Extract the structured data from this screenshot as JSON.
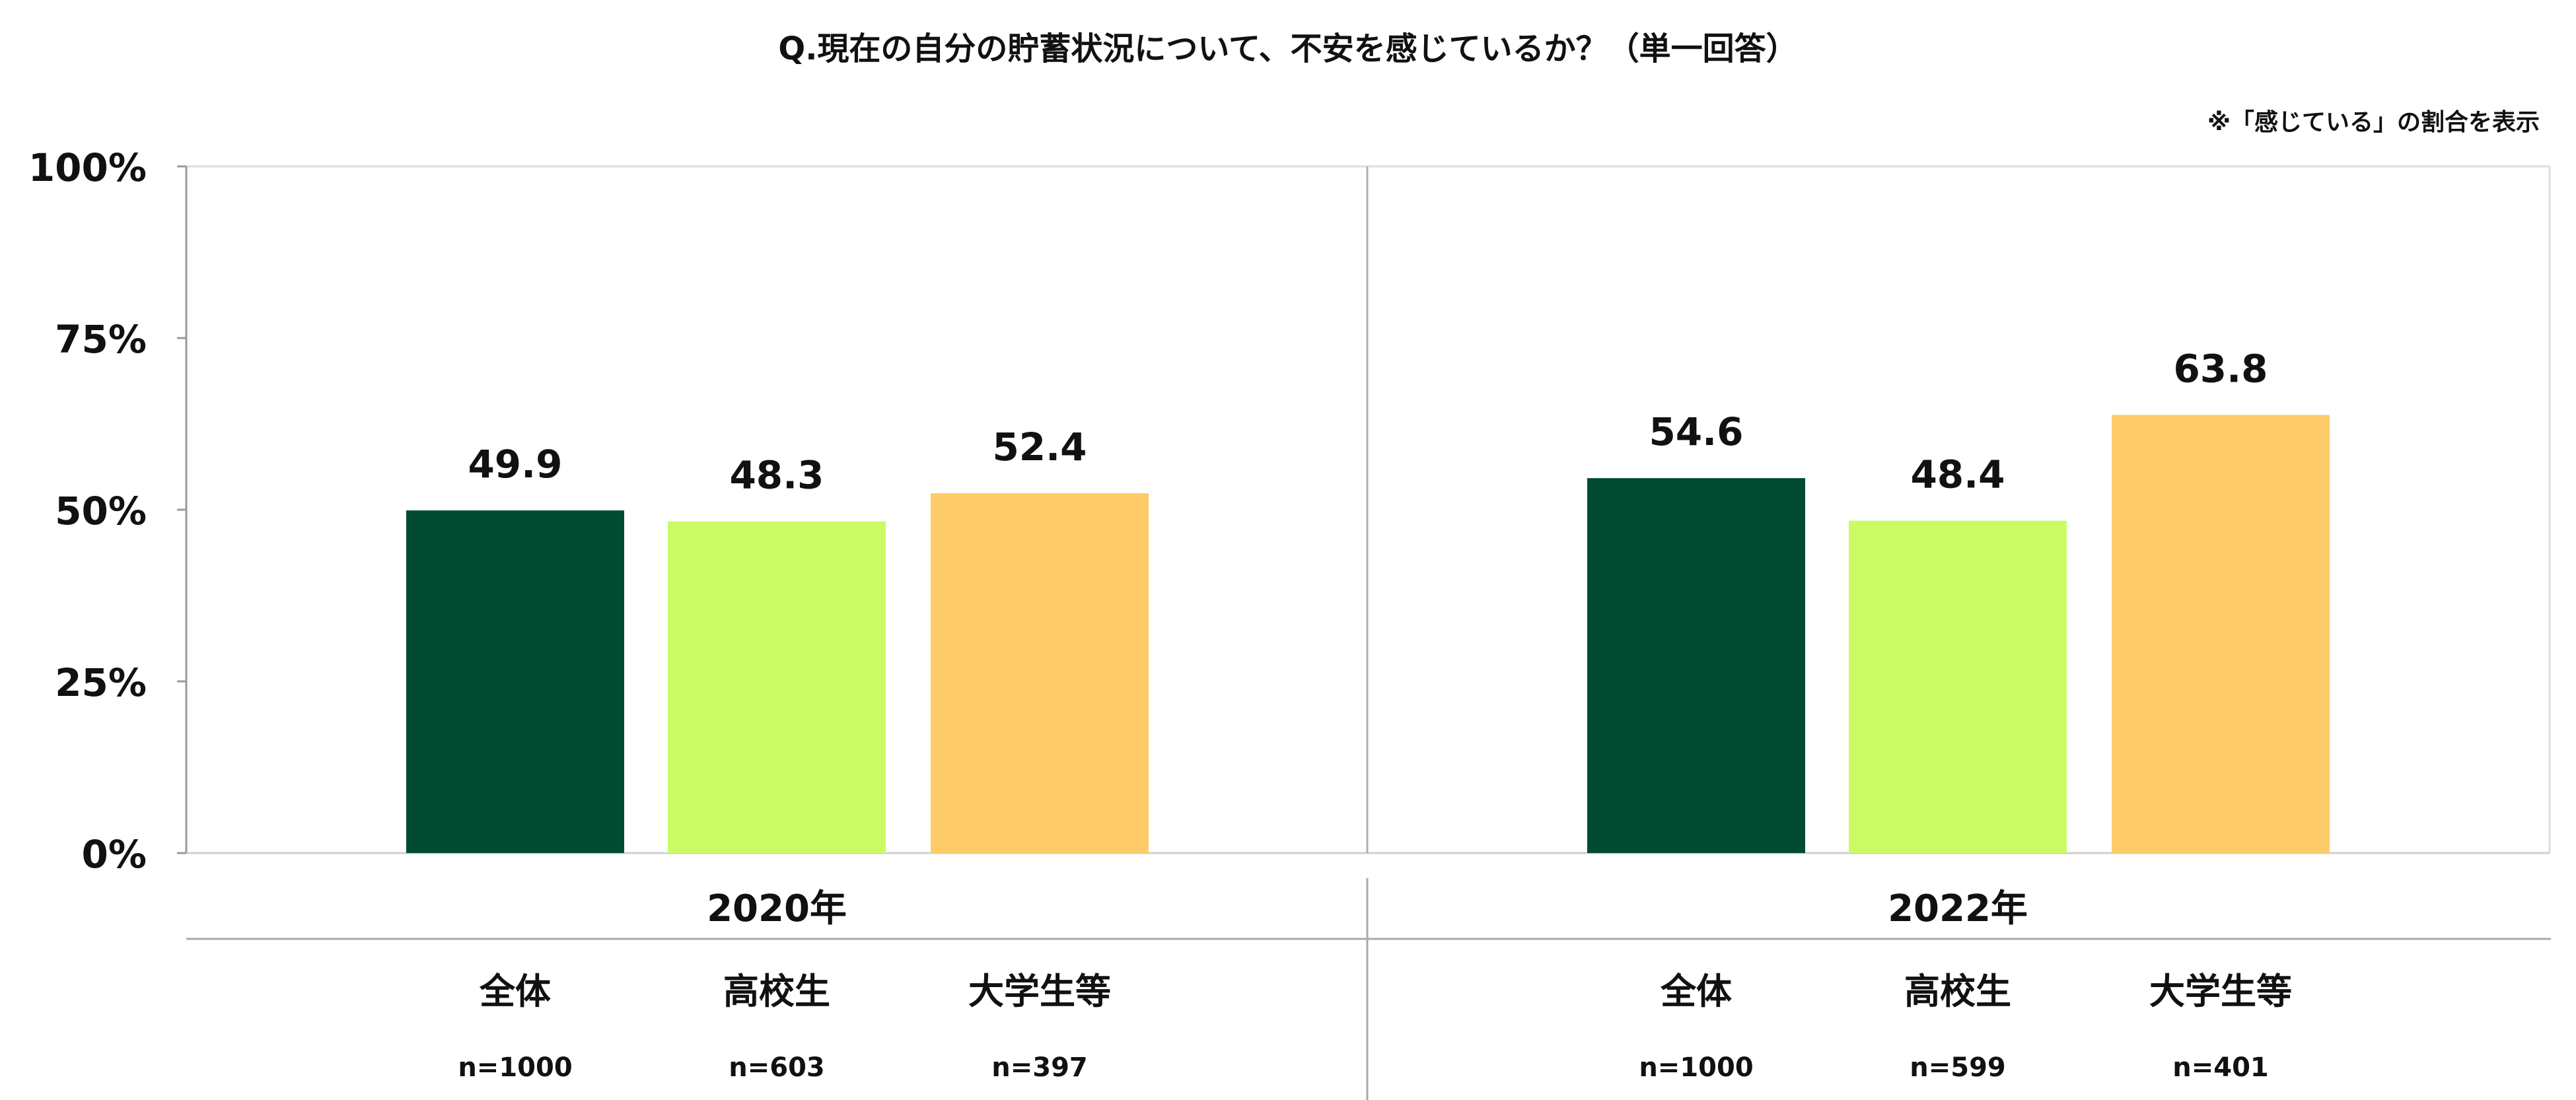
{
  "chart_data": {
    "type": "bar",
    "title": "Q.現在の自分の貯蓄状況について、不安を感じているか？（単一回答）",
    "note": "※「感じている」の割合を表示",
    "ylim": [
      0,
      100
    ],
    "yticks": [
      {
        "value": 0,
        "label": "0%"
      },
      {
        "value": 25,
        "label": "25%"
      },
      {
        "value": 50,
        "label": "50%"
      },
      {
        "value": 75,
        "label": "75%"
      },
      {
        "value": 100,
        "label": "100%"
      }
    ],
    "grid": false,
    "colors": {
      "全体": "#024b33",
      "高校生": "#cbfb64",
      "大学生等": "#fdcb68"
    },
    "groups": [
      {
        "label": "2020年",
        "bars": [
          {
            "category": "全体",
            "value": 49.9,
            "value_label": "49.9",
            "n": "n=1000"
          },
          {
            "category": "高校生",
            "value": 48.3,
            "value_label": "48.3",
            "n": "n=603"
          },
          {
            "category": "大学生等",
            "value": 52.4,
            "value_label": "52.4",
            "n": "n=397"
          }
        ]
      },
      {
        "label": "2022年",
        "bars": [
          {
            "category": "全体",
            "value": 54.6,
            "value_label": "54.6",
            "n": "n=1000"
          },
          {
            "category": "高校生",
            "value": 48.4,
            "value_label": "48.4",
            "n": "n=599"
          },
          {
            "category": "大学生等",
            "value": 63.8,
            "value_label": "63.8",
            "n": "n=401"
          }
        ]
      }
    ]
  }
}
